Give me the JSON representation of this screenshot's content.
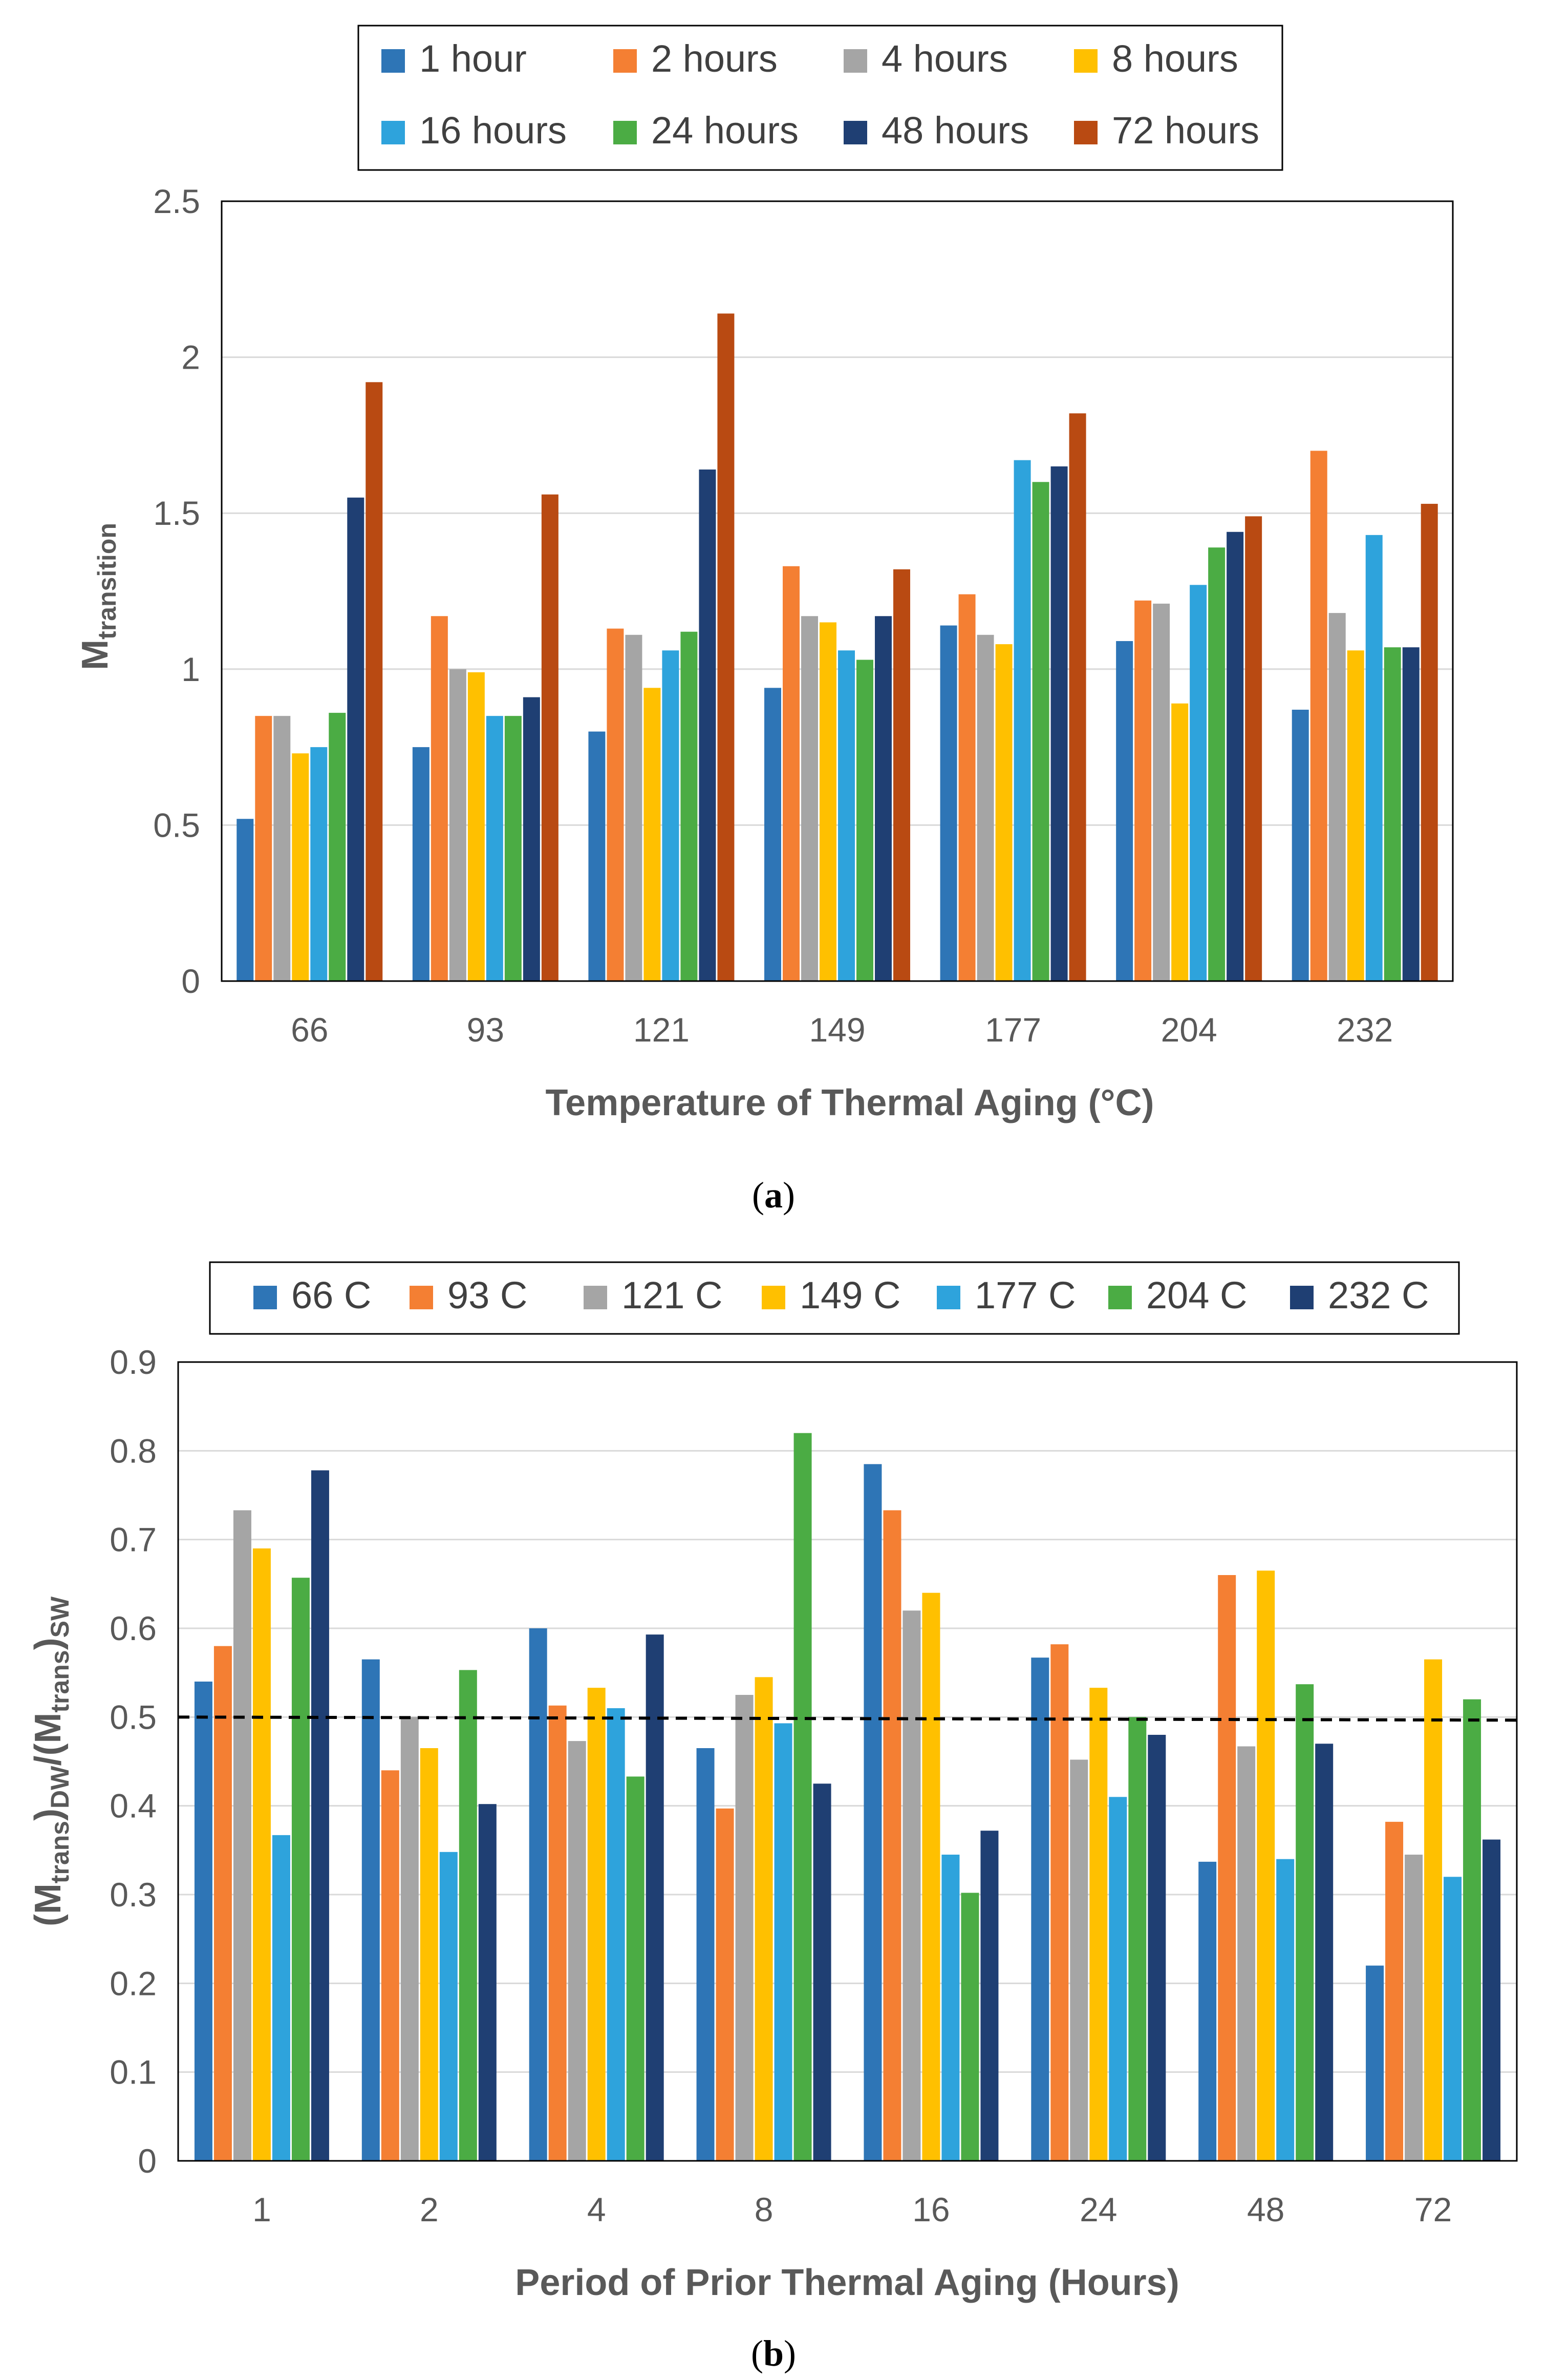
{
  "colors": {
    "blue": "#2E75B6",
    "orange": "#F47F33",
    "gray": "#A5A5A5",
    "yellow": "#FFC000",
    "light_blue": "#2EA3DC",
    "green": "#4BAC44",
    "navy": "#1F3F73",
    "rust": "#B94A12"
  },
  "chart_data": [
    {
      "type": "bar",
      "panel": "a",
      "caption_open": "(",
      "caption_letter": "a",
      "caption_close": ")",
      "xlabel": "Temperature of Thermal Aging (°C)",
      "ylabel_main": "M",
      "ylabel_sub": "transition",
      "ylim": [
        0,
        2.5
      ],
      "yticks": [
        "0",
        "0.5",
        "1",
        "1.5",
        "2",
        "2.5"
      ],
      "grid": true,
      "legend_placement": "top",
      "categories": [
        "66",
        "93",
        "121",
        "149",
        "177",
        "204",
        "232"
      ],
      "series": [
        {
          "name": "1 hour",
          "color": "#2E75B6",
          "values": [
            0.52,
            0.75,
            0.8,
            0.94,
            1.14,
            1.09,
            0.87
          ]
        },
        {
          "name": "2 hours",
          "color": "#F47F33",
          "values": [
            0.85,
            1.17,
            1.13,
            1.33,
            1.24,
            1.22,
            1.7
          ]
        },
        {
          "name": "4 hours",
          "color": "#A5A5A5",
          "values": [
            0.85,
            1.0,
            1.11,
            1.17,
            1.11,
            1.21,
            1.18
          ]
        },
        {
          "name": "8 hours",
          "color": "#FFC000",
          "values": [
            0.73,
            0.99,
            0.94,
            1.15,
            1.08,
            0.89,
            1.06
          ]
        },
        {
          "name": "16 hours",
          "color": "#2EA3DC",
          "values": [
            0.75,
            0.85,
            1.06,
            1.06,
            1.67,
            1.27,
            1.43
          ]
        },
        {
          "name": "24 hours",
          "color": "#4BAC44",
          "values": [
            0.86,
            0.85,
            1.12,
            1.03,
            1.6,
            1.39,
            1.07
          ]
        },
        {
          "name": "48 hours",
          "color": "#1F3F73",
          "values": [
            1.55,
            0.91,
            1.64,
            1.17,
            1.65,
            1.44,
            1.07
          ]
        },
        {
          "name": "72 hours",
          "color": "#B94A12",
          "values": [
            1.92,
            1.56,
            2.14,
            1.32,
            1.82,
            1.49,
            1.53
          ]
        }
      ]
    },
    {
      "type": "bar",
      "panel": "b",
      "caption_open": "(",
      "caption_letter": "b",
      "caption_close": ")",
      "xlabel": "Period of Prior Thermal Aging (Hours)",
      "ylabel_parts": [
        "(M",
        "trans",
        ")",
        "DW",
        "/(M",
        "trans",
        ")",
        "SW"
      ],
      "ylim": [
        0,
        0.9
      ],
      "yticks": [
        "0",
        "0.1",
        "0.2",
        "0.3",
        "0.4",
        "0.5",
        "0.6",
        "0.7",
        "0.8",
        "0.9"
      ],
      "grid": true,
      "legend_placement": "top",
      "reference_line": 0.5,
      "categories": [
        "1",
        "2",
        "4",
        "8",
        "16",
        "24",
        "48",
        "72"
      ],
      "series": [
        {
          "name": "66 C",
          "color": "#2E75B6",
          "values": [
            0.54,
            0.565,
            0.6,
            0.465,
            0.785,
            0.567,
            0.337,
            0.22
          ]
        },
        {
          "name": "93 C",
          "color": "#F47F33",
          "values": [
            0.58,
            0.44,
            0.513,
            0.397,
            0.733,
            0.582,
            0.66,
            0.382
          ]
        },
        {
          "name": "121 C",
          "color": "#A5A5A5",
          "values": [
            0.733,
            0.5,
            0.473,
            0.525,
            0.62,
            0.452,
            0.467,
            0.345
          ]
        },
        {
          "name": "149 C",
          "color": "#FFC000",
          "values": [
            0.69,
            0.465,
            0.533,
            0.545,
            0.64,
            0.533,
            0.665,
            0.565
          ]
        },
        {
          "name": "177 C",
          "color": "#2EA3DC",
          "values": [
            0.367,
            0.348,
            0.51,
            0.493,
            0.345,
            0.41,
            0.34,
            0.32
          ]
        },
        {
          "name": "204 C",
          "color": "#4BAC44",
          "values": [
            0.657,
            0.553,
            0.433,
            0.82,
            0.302,
            0.5,
            0.537,
            0.52
          ]
        },
        {
          "name": "232 C",
          "color": "#1F3F73",
          "values": [
            0.778,
            0.402,
            0.593,
            0.425,
            0.372,
            0.48,
            0.47,
            0.362
          ]
        }
      ]
    }
  ]
}
